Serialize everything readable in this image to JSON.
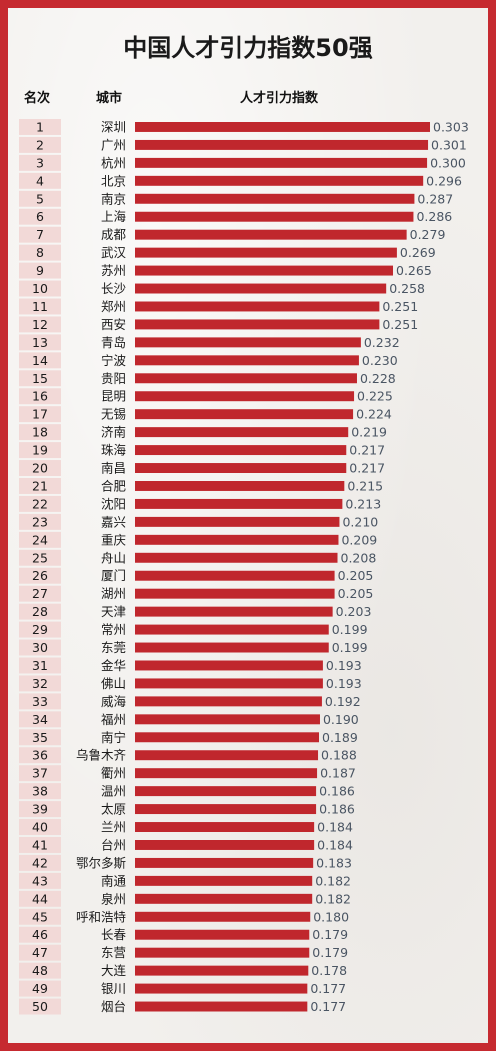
{
  "title": "中国人才引力指数50强",
  "headers": {
    "rank": "名次",
    "city": "城市",
    "index": "人才引力指数"
  },
  "colors": {
    "bar": "#c0272d",
    "border": "#c62a30",
    "rank_bg": "#f2d9d7",
    "value_text": "#4a5563"
  },
  "chart_data": {
    "type": "bar",
    "orientation": "horizontal",
    "xlim": [
      0,
      0.303
    ],
    "rows": [
      {
        "rank": "1",
        "city": "深圳",
        "value": 0.303
      },
      {
        "rank": "2",
        "city": "广州",
        "value": 0.301
      },
      {
        "rank": "3",
        "city": "杭州",
        "value": 0.3
      },
      {
        "rank": "4",
        "city": "北京",
        "value": 0.296
      },
      {
        "rank": "5",
        "city": "南京",
        "value": 0.287
      },
      {
        "rank": "6",
        "city": "上海",
        "value": 0.286
      },
      {
        "rank": "7",
        "city": "成都",
        "value": 0.279
      },
      {
        "rank": "8",
        "city": "武汉",
        "value": 0.269
      },
      {
        "rank": "9",
        "city": "苏州",
        "value": 0.265
      },
      {
        "rank": "10",
        "city": "长沙",
        "value": 0.258
      },
      {
        "rank": "11",
        "city": "郑州",
        "value": 0.251
      },
      {
        "rank": "12",
        "city": "西安",
        "value": 0.251
      },
      {
        "rank": "13",
        "city": "青岛",
        "value": 0.232
      },
      {
        "rank": "14",
        "city": "宁波",
        "value": 0.23
      },
      {
        "rank": "15",
        "city": "贵阳",
        "value": 0.228
      },
      {
        "rank": "16",
        "city": "昆明",
        "value": 0.225
      },
      {
        "rank": "17",
        "city": "无锡",
        "value": 0.224
      },
      {
        "rank": "18",
        "city": "济南",
        "value": 0.219
      },
      {
        "rank": "19",
        "city": "珠海",
        "value": 0.217
      },
      {
        "rank": "20",
        "city": "南昌",
        "value": 0.217
      },
      {
        "rank": "21",
        "city": "合肥",
        "value": 0.215
      },
      {
        "rank": "22",
        "city": "沈阳",
        "value": 0.213
      },
      {
        "rank": "23",
        "city": "嘉兴",
        "value": 0.21
      },
      {
        "rank": "24",
        "city": "重庆",
        "value": 0.209
      },
      {
        "rank": "25",
        "city": "舟山",
        "value": 0.208
      },
      {
        "rank": "26",
        "city": "厦门",
        "value": 0.205
      },
      {
        "rank": "27",
        "city": "湖州",
        "value": 0.205
      },
      {
        "rank": "28",
        "city": "天津",
        "value": 0.203
      },
      {
        "rank": "29",
        "city": "常州",
        "value": 0.199
      },
      {
        "rank": "30",
        "city": "东莞",
        "value": 0.199
      },
      {
        "rank": "31",
        "city": "金华",
        "value": 0.193
      },
      {
        "rank": "32",
        "city": "佛山",
        "value": 0.193
      },
      {
        "rank": "33",
        "city": "威海",
        "value": 0.192
      },
      {
        "rank": "34",
        "city": "福州",
        "value": 0.19
      },
      {
        "rank": "35",
        "city": "南宁",
        "value": 0.189
      },
      {
        "rank": "36",
        "city": "乌鲁木齐",
        "value": 0.188
      },
      {
        "rank": "37",
        "city": "衢州",
        "value": 0.187
      },
      {
        "rank": "38",
        "city": "温州",
        "value": 0.186
      },
      {
        "rank": "39",
        "city": "太原",
        "value": 0.186
      },
      {
        "rank": "40",
        "city": "兰州",
        "value": 0.184
      },
      {
        "rank": "41",
        "city": "台州",
        "value": 0.184
      },
      {
        "rank": "42",
        "city": "鄂尔多斯",
        "value": 0.183
      },
      {
        "rank": "43",
        "city": "南通",
        "value": 0.182
      },
      {
        "rank": "44",
        "city": "泉州",
        "value": 0.182
      },
      {
        "rank": "45",
        "city": "呼和浩特",
        "value": 0.18
      },
      {
        "rank": "46",
        "city": "长春",
        "value": 0.179
      },
      {
        "rank": "47",
        "city": "东营",
        "value": 0.179
      },
      {
        "rank": "48",
        "city": "大连",
        "value": 0.178
      },
      {
        "rank": "49",
        "city": "银川",
        "value": 0.177
      },
      {
        "rank": "50",
        "city": "烟台",
        "value": 0.177
      }
    ]
  }
}
